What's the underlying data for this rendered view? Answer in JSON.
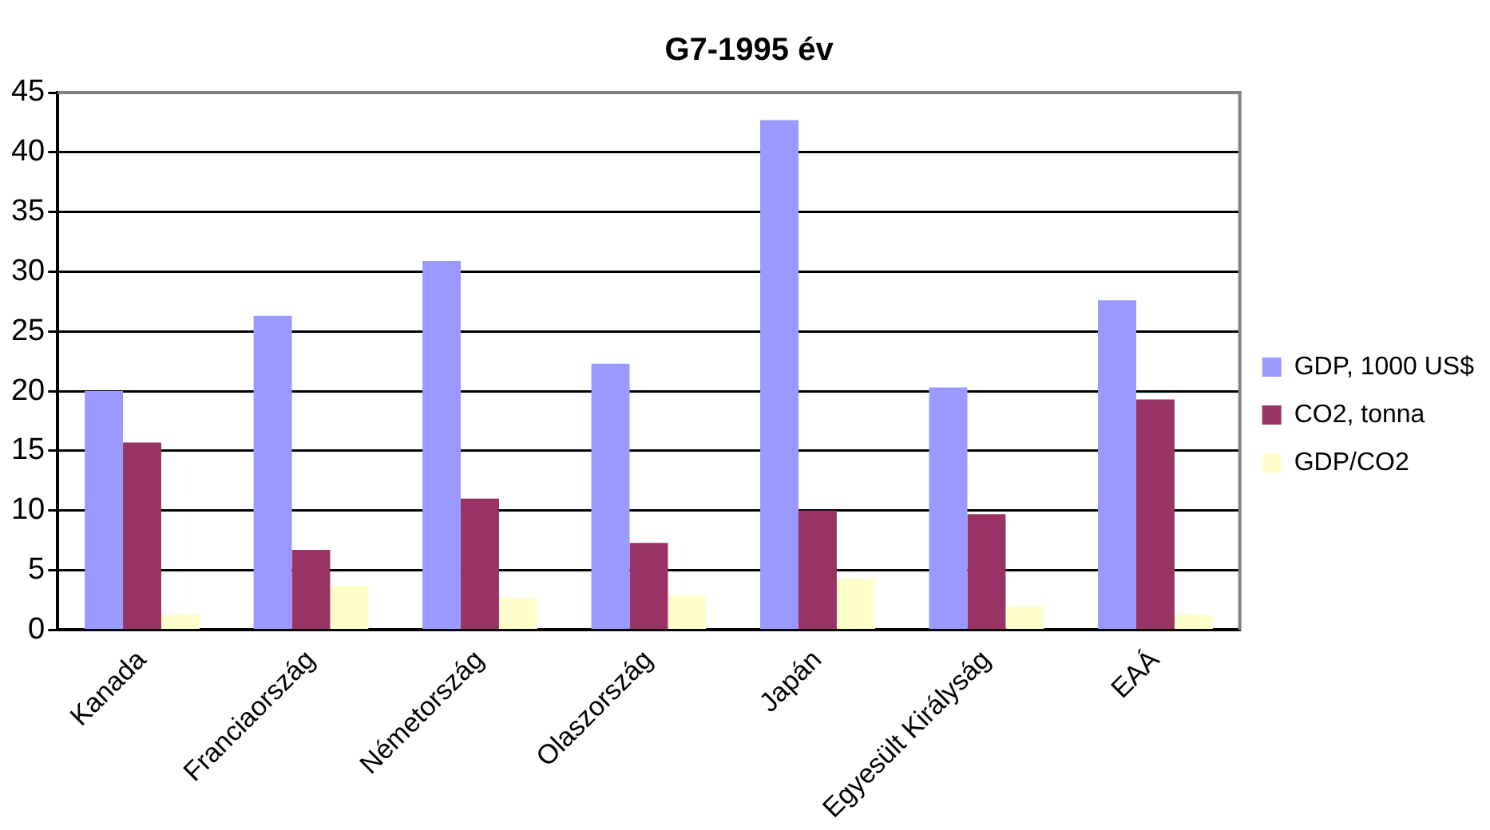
{
  "chart_data": {
    "type": "bar",
    "title": "G7-1995 év",
    "categories": [
      "Kanada",
      "Franciaország",
      "Németország",
      "Olaszország",
      "Japán",
      "Egyesült Királyság",
      "EAÁ"
    ],
    "series": [
      {
        "name": "GDP, 1000 US$",
        "color": "#9999ff",
        "values": [
          20,
          26.3,
          30.9,
          22.3,
          42.7,
          20.3,
          27.6
        ]
      },
      {
        "name": "CO2, tonna",
        "color": "#993366",
        "values": [
          15.7,
          6.7,
          11.0,
          7.3,
          10.0,
          9.7,
          19.3
        ]
      },
      {
        "name": "GDP/CO2",
        "color": "#ffffcc",
        "values": [
          1.3,
          3.7,
          2.7,
          2.9,
          4.3,
          2.0,
          1.3
        ]
      }
    ],
    "ylim": [
      0,
      45
    ],
    "yticks": [
      0,
      5,
      10,
      15,
      20,
      25,
      30,
      35,
      40,
      45
    ],
    "grid": "y",
    "legend": "right"
  }
}
